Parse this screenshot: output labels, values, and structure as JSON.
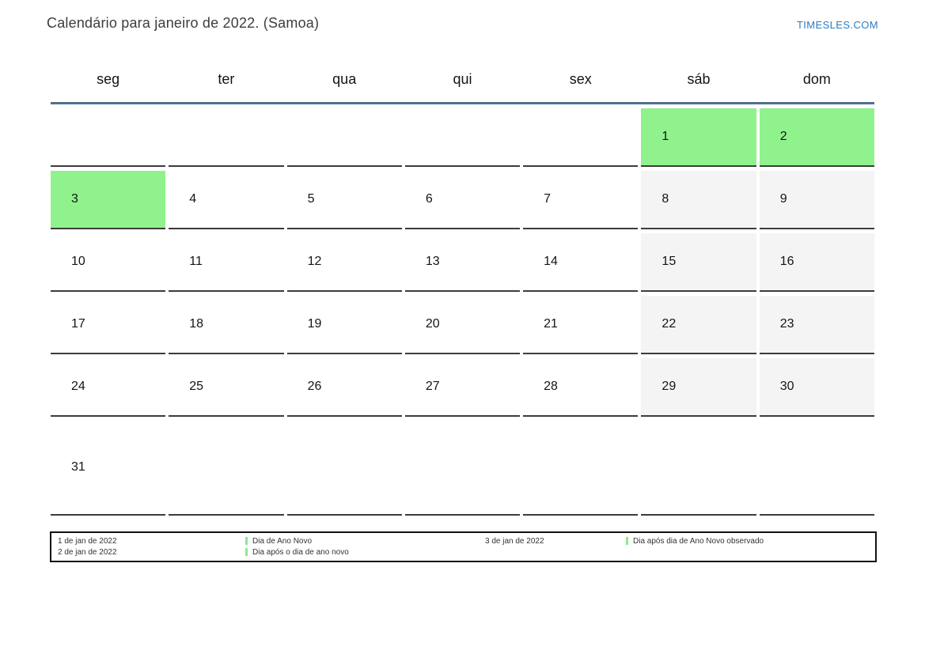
{
  "header": {
    "title": "Calendário para janeiro de 2022. (Samoa)",
    "site": "TIMESLES.COM"
  },
  "weekdays": [
    "seg",
    "ter",
    "qua",
    "qui",
    "sex",
    "sáb",
    "dom"
  ],
  "weeks": [
    {
      "cells": [
        {
          "day": "",
          "bg": "plain"
        },
        {
          "day": "",
          "bg": "plain"
        },
        {
          "day": "",
          "bg": "plain"
        },
        {
          "day": "",
          "bg": "plain"
        },
        {
          "day": "",
          "bg": "plain"
        },
        {
          "day": "1",
          "bg": "holiday"
        },
        {
          "day": "2",
          "bg": "holiday"
        }
      ]
    },
    {
      "cells": [
        {
          "day": "3",
          "bg": "holiday"
        },
        {
          "day": "4",
          "bg": "plain"
        },
        {
          "day": "5",
          "bg": "plain"
        },
        {
          "day": "6",
          "bg": "plain"
        },
        {
          "day": "7",
          "bg": "plain"
        },
        {
          "day": "8",
          "bg": "weekend"
        },
        {
          "day": "9",
          "bg": "weekend"
        }
      ]
    },
    {
      "cells": [
        {
          "day": "10",
          "bg": "plain"
        },
        {
          "day": "11",
          "bg": "plain"
        },
        {
          "day": "12",
          "bg": "plain"
        },
        {
          "day": "13",
          "bg": "plain"
        },
        {
          "day": "14",
          "bg": "plain"
        },
        {
          "day": "15",
          "bg": "weekend"
        },
        {
          "day": "16",
          "bg": "weekend"
        }
      ]
    },
    {
      "cells": [
        {
          "day": "17",
          "bg": "plain"
        },
        {
          "day": "18",
          "bg": "plain"
        },
        {
          "day": "19",
          "bg": "plain"
        },
        {
          "day": "20",
          "bg": "plain"
        },
        {
          "day": "21",
          "bg": "plain"
        },
        {
          "day": "22",
          "bg": "weekend"
        },
        {
          "day": "23",
          "bg": "weekend"
        }
      ]
    },
    {
      "cells": [
        {
          "day": "24",
          "bg": "plain"
        },
        {
          "day": "25",
          "bg": "plain"
        },
        {
          "day": "26",
          "bg": "plain"
        },
        {
          "day": "27",
          "bg": "plain"
        },
        {
          "day": "28",
          "bg": "plain"
        },
        {
          "day": "29",
          "bg": "weekend"
        },
        {
          "day": "30",
          "bg": "weekend"
        }
      ]
    },
    {
      "cells": [
        {
          "day": "31",
          "bg": "plain"
        },
        {
          "day": "",
          "bg": "plain"
        },
        {
          "day": "",
          "bg": "plain"
        },
        {
          "day": "",
          "bg": "plain"
        },
        {
          "day": "",
          "bg": "plain"
        },
        {
          "day": "",
          "bg": "plain"
        },
        {
          "day": "",
          "bg": "plain"
        }
      ]
    }
  ],
  "legend": {
    "entries": [
      {
        "date": "1 de jan de 2022",
        "label": "Dia de Ano Novo"
      },
      {
        "date": "2 de jan de 2022",
        "label": "Dia após o dia de ano novo"
      },
      {
        "date": "3 de jan de 2022",
        "label": "Dia após dia de Ano Novo observado"
      }
    ]
  },
  "colors": {
    "holiday": "#90f28c",
    "weekend": "#f4f4f4",
    "header_line": "#50708f",
    "cell_line": "#3c3c3c",
    "legend_marker": "#8ee88e",
    "site_link": "#2d7cc2"
  }
}
